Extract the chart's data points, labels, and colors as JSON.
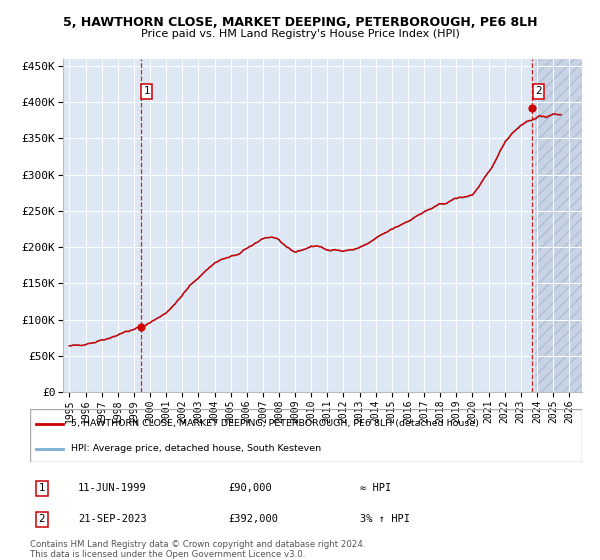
{
  "title1": "5, HAWTHORN CLOSE, MARKET DEEPING, PETERBOROUGH, PE6 8LH",
  "title2": "Price paid vs. HM Land Registry's House Price Index (HPI)",
  "ylim": [
    0,
    460000
  ],
  "yticks": [
    0,
    50000,
    100000,
    150000,
    200000,
    250000,
    300000,
    350000,
    400000,
    450000
  ],
  "ytick_labels": [
    "£0",
    "£50K",
    "£100K",
    "£150K",
    "£200K",
    "£250K",
    "£300K",
    "£350K",
    "£400K",
    "£450K"
  ],
  "xlim_start": 1994.6,
  "xlim_end": 2026.8,
  "xtick_years": [
    1995,
    1996,
    1997,
    1998,
    1999,
    2000,
    2001,
    2002,
    2003,
    2004,
    2005,
    2006,
    2007,
    2008,
    2009,
    2010,
    2011,
    2012,
    2013,
    2014,
    2015,
    2016,
    2017,
    2018,
    2019,
    2020,
    2021,
    2022,
    2023,
    2024,
    2025,
    2026
  ],
  "hpi_color": "#7bafd4",
  "sale_color": "#cc0000",
  "plot_bg": "#dde8f4",
  "grid_color": "#ffffff",
  "annotation_box_color": "#cc0000",
  "sale1_x": 1999.44,
  "sale1_y": 90000,
  "sale2_x": 2023.72,
  "sale2_y": 392000,
  "legend_line1": "5, HAWTHORN CLOSE, MARKET DEEPING, PETERBOROUGH, PE6 8LH (detached house)",
  "legend_line2": "HPI: Average price, detached house, South Kesteven",
  "note1_label": "1",
  "note1_date": "11-JUN-1999",
  "note1_price": "£90,000",
  "note1_hpi": "≈ HPI",
  "note2_label": "2",
  "note2_date": "21-SEP-2023",
  "note2_price": "£392,000",
  "note2_hpi": "3% ↑ HPI",
  "footer1": "Contains HM Land Registry data © Crown copyright and database right 2024.",
  "footer2": "This data is licensed under the Open Government Licence v3.0."
}
